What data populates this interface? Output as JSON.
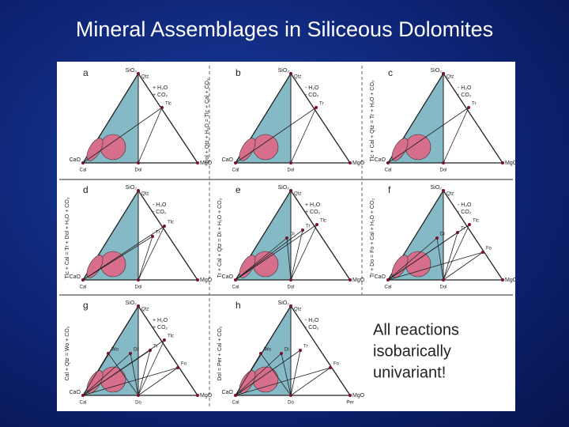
{
  "title": "Mineral Assemblages in Siliceous Dolomites",
  "note": [
    "All reactions",
    "isobarically",
    "univariant!"
  ],
  "panels": [
    {
      "letter": "a",
      "apex": "SiO₂",
      "apex_phase": "Qtz",
      "left": "CaO",
      "left_phase": "Cal",
      "mid_phase": "Dol",
      "right": "MgO",
      "phases": [
        "Tlc"
      ],
      "fluid": [
        "+ H₂O",
        "+ CO₂"
      ],
      "reaction": "Dol + Qtz + H₂O = Tlc + Cal + CO₂"
    },
    {
      "letter": "b",
      "apex": "SiO₂",
      "apex_phase": "Qtz",
      "left": "CaO",
      "left_phase": "Cal",
      "mid_phase": "Dol",
      "right": "MgO",
      "phases": [
        "Tr"
      ],
      "fluid": [
        "- H₂O",
        "- CO₂"
      ]
    },
    {
      "letter": "c",
      "apex": "SiO₂",
      "apex_phase": "Qtz",
      "left": "CaO",
      "left_phase": "Cal",
      "mid_phase": "Dol",
      "right": "MgO",
      "phases": [
        "Tr"
      ],
      "fluid": [
        "- H₂O",
        "- CO₂"
      ],
      "reaction": "Tlc + Cal + Qtz = Tr + H₂O + CO₂"
    },
    {
      "letter": "d",
      "apex": "SiO₂",
      "apex_phase": "Qtz",
      "left": "CaO",
      "left_phase": "Cal",
      "mid_phase": "Dol",
      "right": "MgO",
      "phases": [
        "Tr",
        "Tlc"
      ],
      "fluid": [
        "- H₂O",
        "- CO₂"
      ],
      "reaction": "Tlc + Cal = Tr + Dol + H₂O + CO₂"
    },
    {
      "letter": "e",
      "apex": "SiO₂",
      "apex_phase": "Qtz",
      "left": "CaO",
      "left_phase": "Cal",
      "mid_phase": "Dol",
      "right": "MgO",
      "phases": [
        "Tr",
        "Di",
        "Tlc"
      ],
      "fluid": [
        "+ H₂O",
        "+ CO₂"
      ],
      "reaction": "Tr + Cal + Qtz = Di + H₂O + CO₂"
    },
    {
      "letter": "f",
      "apex": "SiO₂",
      "apex_phase": "Qtz",
      "left": "CaO",
      "left_phase": "Cal",
      "mid_phase": "Dol",
      "right": "MgO",
      "phases": [
        "Di",
        "Tr",
        "Tlc",
        "Fo"
      ],
      "fluid": [
        "- H₂O",
        "- CO₂"
      ],
      "reaction": "Tr + Do = Fo + Cal + H₂O + CO₂"
    },
    {
      "letter": "g",
      "apex": "SiO₂",
      "apex_phase": "Qtz",
      "left": "CaO",
      "left_phase": "Cal",
      "mid_phase": "Do",
      "right": "MgO",
      "phases": [
        "Wo",
        "Di",
        "Tr",
        "Tlc",
        "Fo"
      ],
      "fluid": [
        "+ H₂O",
        "+ CO₂"
      ],
      "reaction": "Cal + Qtz = Wo + CO₂"
    },
    {
      "letter": "h",
      "apex": "SiO₂",
      "apex_phase": "Qtz",
      "left": "CaO",
      "left_phase": "Cal",
      "mid_phase": "Do",
      "right": "MgO",
      "right_phase": "Per",
      "phases": [
        "Wo",
        "Di",
        "Tr",
        "Fo"
      ],
      "fluid": [
        "- H₂O",
        "- CO₂"
      ],
      "reaction": "Dol = Per + Cal + CO₂"
    }
  ]
}
